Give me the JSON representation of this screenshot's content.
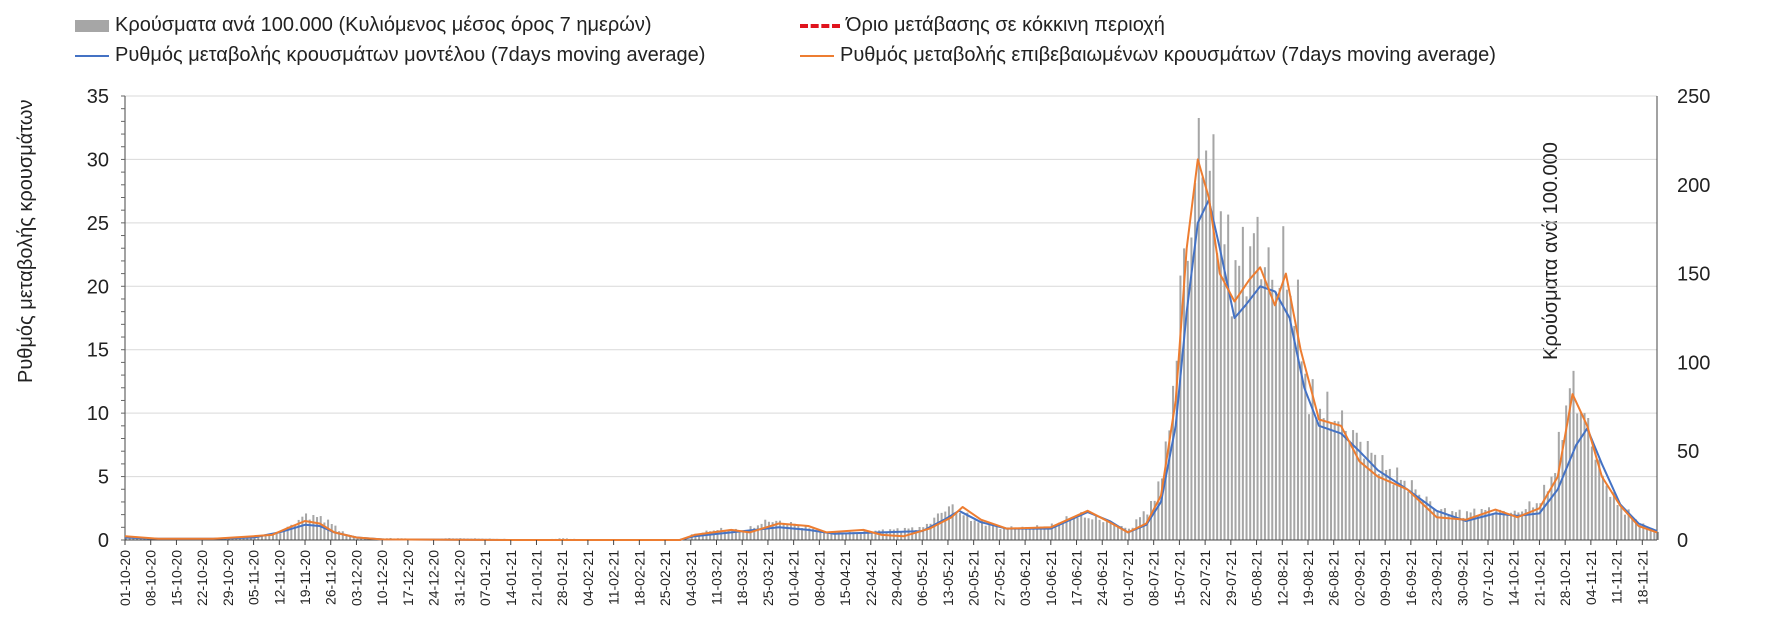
{
  "legend": {
    "bars": "Κρούσματα ανά 100.000 (Κυλιόμενος μέσος όρος 7 ημερών)",
    "red": "Όριο μετάβασης σε κόκκινη περιοχή",
    "blue": "Ρυθμός μεταβολής κρουσμάτων μοντέλου (7days moving average)",
    "orange": "Ρυθμός μεταβολής επιβεβαιωμένων κρουσμάτων (7days moving average)"
  },
  "colors": {
    "bars": "#a6a6a6",
    "blue": "#4472c4",
    "orange": "#ed7d31",
    "red": "#e0141e",
    "grid": "#d9d9d9"
  },
  "chart_data": {
    "type": "bar",
    "ylabel": "Ρυθμός μεταβολής κρουσμάτων",
    "y2label": "Κρούσματα ανά 100.000",
    "ylim": [
      0,
      35
    ],
    "y2lim": [
      0,
      250
    ],
    "yticks": [
      0,
      5,
      10,
      15,
      20,
      25,
      30,
      35
    ],
    "y2ticks": [
      0,
      50,
      100,
      150,
      200,
      250
    ],
    "x_start": "2020-10-01",
    "x_end": "2021-11-22",
    "x_ticks": [
      "01-10-20",
      "08-10-20",
      "15-10-20",
      "22-10-20",
      "29-10-20",
      "05-11-20",
      "12-11-20",
      "19-11-20",
      "26-11-20",
      "03-12-20",
      "10-12-20",
      "17-12-20",
      "24-12-20",
      "31-12-20",
      "07-01-21",
      "14-01-21",
      "21-01-21",
      "28-01-21",
      "04-02-21",
      "11-02-21",
      "18-02-21",
      "25-02-21",
      "04-03-21",
      "11-03-21",
      "18-03-21",
      "25-03-21",
      "01-04-21",
      "08-04-21",
      "15-04-21",
      "22-04-21",
      "29-04-21",
      "06-05-21",
      "13-05-21",
      "20-05-21",
      "27-05-21",
      "03-06-21",
      "10-06-21",
      "17-06-21",
      "24-06-21",
      "01-07-21",
      "08-07-21",
      "15-07-21",
      "22-07-21",
      "29-07-21",
      "05-08-21",
      "12-08-21",
      "19-08-21",
      "26-08-21",
      "02-09-21",
      "09-09-21",
      "16-09-21",
      "23-09-21",
      "30-09-21",
      "07-10-21",
      "14-10-21",
      "21-10-21",
      "28-10-21",
      "04-11-21",
      "11-11-21",
      "18-11-21"
    ],
    "grid": true,
    "series": [
      {
        "name": "Κρούσματα ανά 100.000 (Κυλιόμενος μέσος όρος 7 ημερών)",
        "type": "bar",
        "axis": "y2",
        "points": [
          [
            "2020-10-01",
            2
          ],
          [
            "2020-10-08",
            1
          ],
          [
            "2020-10-15",
            0.5
          ],
          [
            "2020-10-22",
            0.5
          ],
          [
            "2020-10-29",
            1
          ],
          [
            "2020-11-05",
            2
          ],
          [
            "2020-11-12",
            4
          ],
          [
            "2020-11-19",
            14
          ],
          [
            "2020-11-24",
            12
          ],
          [
            "2020-11-30",
            3
          ],
          [
            "2020-12-05",
            1
          ],
          [
            "2020-12-15",
            1
          ],
          [
            "2020-12-20",
            0
          ],
          [
            "2020-12-28",
            1
          ],
          [
            "2021-01-14",
            0.5
          ],
          [
            "2021-01-21",
            0
          ],
          [
            "2021-01-28",
            1
          ],
          [
            "2021-02-04",
            0
          ],
          [
            "2021-03-03",
            0
          ],
          [
            "2021-03-04",
            3
          ],
          [
            "2021-03-11",
            6
          ],
          [
            "2021-03-18",
            5
          ],
          [
            "2021-03-25",
            11
          ],
          [
            "2021-04-01",
            9
          ],
          [
            "2021-04-08",
            5
          ],
          [
            "2021-04-15",
            4
          ],
          [
            "2021-04-22",
            5
          ],
          [
            "2021-04-29",
            6
          ],
          [
            "2021-05-06",
            7
          ],
          [
            "2021-05-13",
            19
          ],
          [
            "2021-05-20",
            11
          ],
          [
            "2021-05-27",
            7
          ],
          [
            "2021-06-03",
            7
          ],
          [
            "2021-06-10",
            8
          ],
          [
            "2021-06-17",
            14
          ],
          [
            "2021-06-24",
            11
          ],
          [
            "2021-07-01",
            6
          ],
          [
            "2021-07-08",
            22
          ],
          [
            "2021-07-12",
            60
          ],
          [
            "2021-07-15",
            140
          ],
          [
            "2021-07-18",
            180
          ],
          [
            "2021-07-21",
            230
          ],
          [
            "2021-07-25",
            190
          ],
          [
            "2021-07-29",
            150
          ],
          [
            "2021-08-02",
            160
          ],
          [
            "2021-08-05",
            170
          ],
          [
            "2021-08-09",
            145
          ],
          [
            "2021-08-12",
            155
          ],
          [
            "2021-08-16",
            125
          ],
          [
            "2021-08-19",
            78
          ],
          [
            "2021-08-26",
            70
          ],
          [
            "2021-09-02",
            55
          ],
          [
            "2021-09-09",
            40
          ],
          [
            "2021-09-16",
            30
          ],
          [
            "2021-09-23",
            17
          ],
          [
            "2021-09-30",
            15
          ],
          [
            "2021-10-07",
            17
          ],
          [
            "2021-10-14",
            15
          ],
          [
            "2021-10-21",
            22
          ],
          [
            "2021-10-25",
            40
          ],
          [
            "2021-10-29",
            88
          ],
          [
            "2021-11-02",
            70
          ],
          [
            "2021-11-07",
            35
          ],
          [
            "2021-11-11",
            20
          ],
          [
            "2021-11-18",
            8
          ],
          [
            "2021-11-22",
            4
          ]
        ]
      },
      {
        "name": "Ρυθμός μεταβολής κρουσμάτων μοντέλου (7days moving average)",
        "type": "line",
        "axis": "y",
        "points": [
          [
            "2020-10-01",
            0.2
          ],
          [
            "2020-10-10",
            0.1
          ],
          [
            "2020-10-25",
            0.1
          ],
          [
            "2020-11-05",
            0.2
          ],
          [
            "2020-11-12",
            0.6
          ],
          [
            "2020-11-19",
            1.2
          ],
          [
            "2020-11-23",
            1.1
          ],
          [
            "2020-11-27",
            0.6
          ],
          [
            "2020-12-03",
            0.2
          ],
          [
            "2020-12-10",
            0.05
          ],
          [
            "2021-01-15",
            0.0
          ],
          [
            "2021-03-01",
            0.0
          ],
          [
            "2021-03-05",
            0.3
          ],
          [
            "2021-03-15",
            0.6
          ],
          [
            "2021-03-28",
            1.0
          ],
          [
            "2021-04-05",
            0.8
          ],
          [
            "2021-04-12",
            0.5
          ],
          [
            "2021-04-25",
            0.6
          ],
          [
            "2021-05-06",
            0.7
          ],
          [
            "2021-05-12",
            1.6
          ],
          [
            "2021-05-16",
            2.3
          ],
          [
            "2021-05-22",
            1.4
          ],
          [
            "2021-05-29",
            0.9
          ],
          [
            "2021-06-10",
            0.9
          ],
          [
            "2021-06-20",
            2.2
          ],
          [
            "2021-06-26",
            1.5
          ],
          [
            "2021-07-01",
            0.6
          ],
          [
            "2021-07-06",
            1.2
          ],
          [
            "2021-07-10",
            3.0
          ],
          [
            "2021-07-14",
            9.0
          ],
          [
            "2021-07-17",
            18.0
          ],
          [
            "2021-07-20",
            25.0
          ],
          [
            "2021-07-23",
            26.8
          ],
          [
            "2021-07-26",
            23.0
          ],
          [
            "2021-07-30",
            17.5
          ],
          [
            "2021-08-02",
            18.5
          ],
          [
            "2021-08-06",
            20.0
          ],
          [
            "2021-08-10",
            19.6
          ],
          [
            "2021-08-14",
            17.5
          ],
          [
            "2021-08-18",
            12.0
          ],
          [
            "2021-08-22",
            9.0
          ],
          [
            "2021-08-28",
            8.4
          ],
          [
            "2021-09-02",
            7.0
          ],
          [
            "2021-09-07",
            5.5
          ],
          [
            "2021-09-15",
            4.0
          ],
          [
            "2021-09-23",
            2.3
          ],
          [
            "2021-10-01",
            1.5
          ],
          [
            "2021-10-09",
            2.1
          ],
          [
            "2021-10-15",
            1.9
          ],
          [
            "2021-10-21",
            2.1
          ],
          [
            "2021-10-26",
            4.0
          ],
          [
            "2021-10-31",
            7.5
          ],
          [
            "2021-11-03",
            8.8
          ],
          [
            "2021-11-07",
            6.0
          ],
          [
            "2021-11-12",
            2.8
          ],
          [
            "2021-11-17",
            1.3
          ],
          [
            "2021-11-22",
            0.7
          ]
        ]
      },
      {
        "name": "Ρυθμός μεταβολής επιβεβαιωμένων κρουσμάτων (7days moving average)",
        "type": "line",
        "axis": "y",
        "points": [
          [
            "2020-10-01",
            0.3
          ],
          [
            "2020-10-10",
            0.1
          ],
          [
            "2020-10-25",
            0.1
          ],
          [
            "2020-11-05",
            0.3
          ],
          [
            "2020-11-10",
            0.4
          ],
          [
            "2020-11-14",
            0.9
          ],
          [
            "2020-11-19",
            1.5
          ],
          [
            "2020-11-23",
            1.3
          ],
          [
            "2020-11-27",
            0.6
          ],
          [
            "2020-12-03",
            0.2
          ],
          [
            "2020-12-10",
            0.05
          ],
          [
            "2021-01-15",
            0.0
          ],
          [
            "2021-03-01",
            0.0
          ],
          [
            "2021-03-05",
            0.4
          ],
          [
            "2021-03-15",
            0.8
          ],
          [
            "2021-03-20",
            0.6
          ],
          [
            "2021-03-28",
            1.3
          ],
          [
            "2021-04-05",
            1.1
          ],
          [
            "2021-04-10",
            0.6
          ],
          [
            "2021-04-20",
            0.8
          ],
          [
            "2021-04-25",
            0.4
          ],
          [
            "2021-05-01",
            0.3
          ],
          [
            "2021-05-08",
            0.9
          ],
          [
            "2021-05-14",
            1.8
          ],
          [
            "2021-05-17",
            2.6
          ],
          [
            "2021-05-22",
            1.6
          ],
          [
            "2021-05-29",
            0.9
          ],
          [
            "2021-06-10",
            1.0
          ],
          [
            "2021-06-20",
            2.3
          ],
          [
            "2021-06-26",
            1.4
          ],
          [
            "2021-07-01",
            0.6
          ],
          [
            "2021-07-06",
            1.3
          ],
          [
            "2021-07-10",
            3.5
          ],
          [
            "2021-07-14",
            11.0
          ],
          [
            "2021-07-17",
            23.0
          ],
          [
            "2021-07-20",
            30.0
          ],
          [
            "2021-07-23",
            27.0
          ],
          [
            "2021-07-26",
            21.0
          ],
          [
            "2021-07-30",
            18.8
          ],
          [
            "2021-08-03",
            20.5
          ],
          [
            "2021-08-06",
            21.5
          ],
          [
            "2021-08-10",
            18.5
          ],
          [
            "2021-08-13",
            21.0
          ],
          [
            "2021-08-17",
            15.0
          ],
          [
            "2021-08-22",
            9.5
          ],
          [
            "2021-08-28",
            9.0
          ],
          [
            "2021-09-02",
            6.2
          ],
          [
            "2021-09-07",
            5.0
          ],
          [
            "2021-09-15",
            4.0
          ],
          [
            "2021-09-23",
            1.8
          ],
          [
            "2021-10-01",
            1.6
          ],
          [
            "2021-10-09",
            2.4
          ],
          [
            "2021-10-15",
            1.8
          ],
          [
            "2021-10-21",
            2.5
          ],
          [
            "2021-10-26",
            5.0
          ],
          [
            "2021-10-30",
            11.5
          ],
          [
            "2021-11-03",
            9.0
          ],
          [
            "2021-11-07",
            5.0
          ],
          [
            "2021-11-12",
            2.7
          ],
          [
            "2021-11-17",
            1.1
          ],
          [
            "2021-11-22",
            0.6
          ]
        ]
      },
      {
        "name": "Όριο μετάβασης σε κόκκινη περιοχή",
        "type": "line",
        "axis": "y",
        "points": []
      }
    ]
  }
}
